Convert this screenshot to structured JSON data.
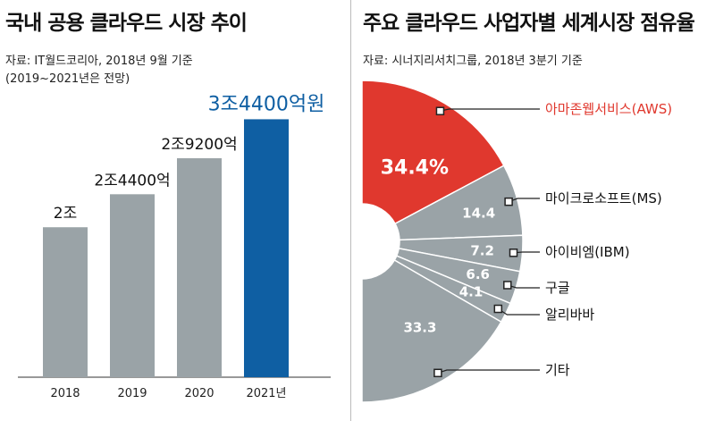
{
  "left": {
    "title": "국내 공용 클라우드 시장 추이",
    "source": "자료: IT월드코리아, 2018년 9월 기준",
    "note": "(2019~2021년은 전망)"
  },
  "right": {
    "title": "주요 클라우드 사업자별 세계시장 점유율",
    "source": "자료: 시너지리서치그룹, 2018년 3분기 기준"
  },
  "colors": {
    "bar": "#9aa3a7",
    "highlight_bar": "#0f5fa3",
    "pie_highlight": "#e0382e",
    "pie": "#9aa3a7"
  },
  "chart_data": [
    {
      "type": "bar",
      "title": "국내 공용 클라우드 시장 추이",
      "categories": [
        "2018",
        "2019",
        "2020",
        "2021년"
      ],
      "values": [
        20000,
        24400,
        29200,
        34400
      ],
      "value_labels": [
        "2조",
        "2조4400억",
        "2조9200억",
        "3조4400억원"
      ],
      "unit": "억원",
      "highlight_index": 3,
      "ylim": [
        0,
        36000
      ],
      "grid": false
    },
    {
      "type": "pie",
      "title": "주요 클라우드 사업자별 세계시장 점유율",
      "unit": "%",
      "labels": [
        "아마존웹서비스(AWS)",
        "마이크로소프트(MS)",
        "아이비엠(IBM)",
        "구글",
        "알리바바",
        "기타"
      ],
      "values": [
        34.4,
        14.4,
        7.2,
        6.6,
        4.1,
        33.3
      ],
      "value_labels": [
        "34.4%",
        "14.4",
        "7.2",
        "6.6",
        "4.1",
        "33.3"
      ],
      "highlight_index": 0,
      "legend_placement": "right"
    }
  ]
}
